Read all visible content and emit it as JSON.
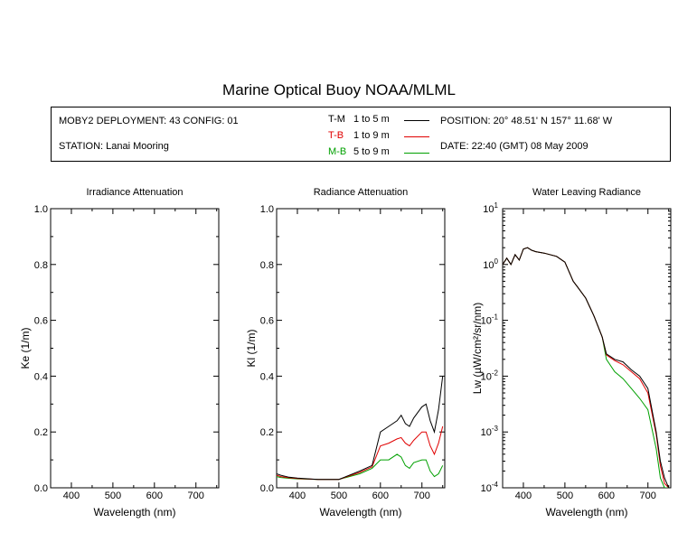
{
  "title": "Marine Optical Buoy NOAA/MLML",
  "info": {
    "deployment": "MOBY2 DEPLOYMENT: 43 CONFIG: 01",
    "station": "STATION: Lanai Mooring",
    "position": "POSITION: 20° 48.51' N   157° 11.68' W",
    "date": "DATE: 22:40 (GMT) 08 May 2009",
    "legend": [
      {
        "code": "T-M",
        "range": "1 to 5  m",
        "color": "#000000"
      },
      {
        "code": "T-B",
        "range": "1 to 9  m",
        "color": "#e00000"
      },
      {
        "code": "M-B",
        "range": "5 to 9  m",
        "color": "#00a000"
      }
    ]
  },
  "chart_data": [
    {
      "type": "line",
      "title": "Irradiance Attenuation",
      "xlabel": "Wavelength (nm)",
      "ylabel": "Ke  (1/m)",
      "xlim": [
        350,
        755
      ],
      "ylim": [
        0,
        1
      ],
      "xticks": [
        400,
        500,
        600,
        700
      ],
      "yticks": [
        "0.0",
        "0.2",
        "0.4",
        "0.6",
        "0.8",
        "1.0"
      ],
      "series": []
    },
    {
      "type": "line",
      "title": "Radiance Attenuation",
      "xlabel": "Wavelength (nm)",
      "ylabel": "Kl  (1/m)",
      "xlim": [
        350,
        755
      ],
      "ylim": [
        0,
        1
      ],
      "xticks": [
        400,
        500,
        600,
        700
      ],
      "yticks": [
        "0.0",
        "0.2",
        "0.4",
        "0.6",
        "0.8",
        "1.0"
      ],
      "series": [
        {
          "name": "T-M",
          "color": "#000000",
          "x": [
            350,
            360,
            380,
            400,
            450,
            500,
            550,
            580,
            600,
            620,
            640,
            650,
            660,
            670,
            680,
            700,
            710,
            720,
            730,
            740,
            750
          ],
          "y": [
            0.05,
            0.045,
            0.038,
            0.035,
            0.03,
            0.03,
            0.06,
            0.08,
            0.2,
            0.22,
            0.24,
            0.26,
            0.23,
            0.22,
            0.25,
            0.29,
            0.3,
            0.24,
            0.2,
            0.28,
            0.4
          ]
        },
        {
          "name": "T-B",
          "color": "#e00000",
          "x": [
            350,
            360,
            380,
            400,
            450,
            500,
            550,
            580,
            600,
            620,
            640,
            650,
            660,
            670,
            680,
            700,
            710,
            720,
            730,
            740,
            750
          ],
          "y": [
            0.045,
            0.04,
            0.036,
            0.033,
            0.03,
            0.03,
            0.055,
            0.075,
            0.15,
            0.16,
            0.175,
            0.18,
            0.16,
            0.15,
            0.17,
            0.2,
            0.2,
            0.15,
            0.12,
            0.16,
            0.22
          ]
        },
        {
          "name": "M-B",
          "color": "#00a000",
          "x": [
            350,
            360,
            380,
            400,
            450,
            500,
            550,
            580,
            600,
            620,
            640,
            650,
            660,
            670,
            680,
            700,
            710,
            720,
            730,
            740,
            750
          ],
          "y": [
            0.04,
            0.037,
            0.034,
            0.032,
            0.03,
            0.03,
            0.05,
            0.07,
            0.1,
            0.1,
            0.12,
            0.11,
            0.08,
            0.07,
            0.09,
            0.1,
            0.1,
            0.06,
            0.04,
            0.05,
            0.08
          ]
        }
      ]
    },
    {
      "type": "line",
      "title": "Water Leaving Radiance",
      "xlabel": "Wavelength (nm)",
      "ylabel": "Lw  (µW/cm²/sr/nm)",
      "xlim": [
        350,
        755
      ],
      "ylim": [
        0.0001,
        10
      ],
      "yscale": "log",
      "xticks": [
        400,
        500,
        600,
        700
      ],
      "yticks": [
        "10^1",
        "10^0",
        "10^-1",
        "10^-2",
        "10^-3",
        "10^-4"
      ],
      "series": [
        {
          "name": "T-M",
          "color": "#000000",
          "x": [
            350,
            360,
            370,
            380,
            390,
            400,
            410,
            420,
            430,
            450,
            480,
            500,
            520,
            530,
            550,
            570,
            590,
            600,
            620,
            640,
            660,
            680,
            700,
            720,
            730,
            740,
            750
          ],
          "y": [
            1.0,
            1.3,
            1.0,
            1.5,
            1.2,
            1.9,
            2.0,
            1.8,
            1.7,
            1.6,
            1.4,
            1.1,
            0.5,
            0.4,
            0.25,
            0.12,
            0.05,
            0.025,
            0.02,
            0.018,
            0.013,
            0.01,
            0.006,
            0.001,
            0.0003,
            0.00015,
            0.0001
          ]
        },
        {
          "name": "T-B",
          "color": "#e00000",
          "x": [
            350,
            360,
            370,
            380,
            390,
            400,
            410,
            420,
            430,
            450,
            480,
            500,
            520,
            530,
            550,
            570,
            590,
            600,
            620,
            640,
            660,
            680,
            700,
            720,
            730,
            740,
            750
          ],
          "y": [
            1.0,
            1.3,
            1.0,
            1.5,
            1.2,
            1.9,
            2.0,
            1.8,
            1.7,
            1.6,
            1.4,
            1.1,
            0.5,
            0.4,
            0.25,
            0.12,
            0.05,
            0.024,
            0.019,
            0.016,
            0.012,
            0.009,
            0.005,
            0.0009,
            0.00025,
            0.00012,
            0.0001
          ]
        },
        {
          "name": "M-B",
          "color": "#00a000",
          "x": [
            350,
            360,
            370,
            380,
            390,
            400,
            410,
            420,
            430,
            450,
            480,
            500,
            520,
            530,
            550,
            570,
            590,
            600,
            620,
            640,
            660,
            680,
            700,
            720,
            730,
            740,
            750
          ],
          "y": [
            1.0,
            1.3,
            1.0,
            1.5,
            1.2,
            1.9,
            2.0,
            1.8,
            1.7,
            1.6,
            1.4,
            1.1,
            0.5,
            0.4,
            0.25,
            0.12,
            0.05,
            0.02,
            0.012,
            0.009,
            0.006,
            0.004,
            0.0025,
            0.0005,
            0.00015,
            0.0001,
            0.0001
          ]
        }
      ]
    }
  ]
}
